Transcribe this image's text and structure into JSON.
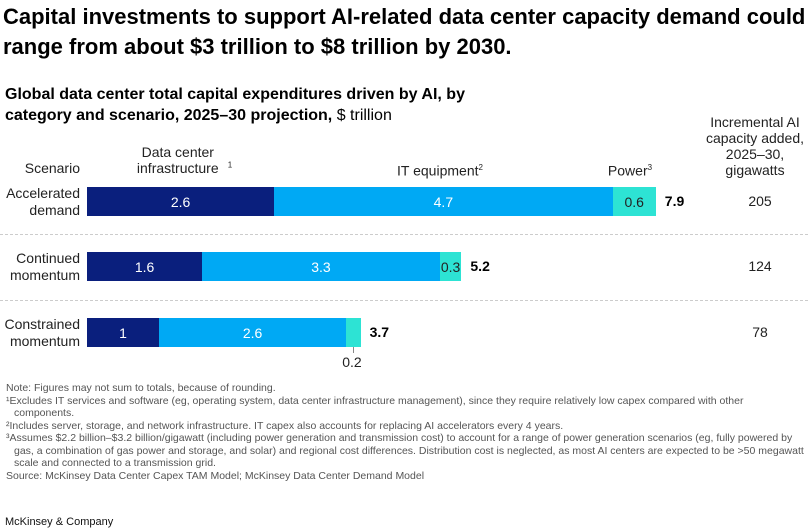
{
  "headline": "Capital investments to support AI-related data center capacity demand could range from about $3 trillion to $8 trillion by 2030.",
  "chart_data": {
    "type": "bar",
    "orientation": "horizontal",
    "stacked": true,
    "title": "Global data center total capital expenditures driven by AI, by category and scenario, 2025–30 projection,",
    "unit": "$ trillion",
    "scenario_header": "Scenario",
    "capacity_header": "Incremental AI capacity added, 2025–30, gigawatts",
    "categories": [
      "Accelerated demand",
      "Continued momentum",
      "Constrained momentum"
    ],
    "series": [
      {
        "name": "Data center infrastructure",
        "footnote": "1",
        "color": "#0a1f7d",
        "values": [
          2.6,
          1.6,
          1.0
        ]
      },
      {
        "name": "IT equipment",
        "footnote": "2",
        "color": "#00a9f4",
        "values": [
          4.7,
          3.3,
          2.6
        ]
      },
      {
        "name": "Power",
        "footnote": "3",
        "color": "#2de3d4",
        "values": [
          0.6,
          0.3,
          0.2
        ]
      }
    ],
    "totals": [
      "7.9",
      "5.2",
      "3.7"
    ],
    "capacity_gw": [
      "205",
      "124",
      "78"
    ]
  },
  "notes": [
    "Note: Figures may not sum to totals, because of rounding.",
    "¹Excludes IT services and software (eg, operating system, data center infrastructure management), since they require relatively low capex compared with other components.",
    "²Includes server, storage, and network infrastructure. IT capex also accounts for replacing AI accelerators every 4 years.",
    "³Assumes $2.2 billion–$3.2 billion/gigawatt (including power generation and transmission cost) to account for a range of power generation scenarios (eg, fully powered by gas, a combination of gas power and storage, and solar) and regional cost differences. Distribution cost is neglected, as most AI centers are expected to be >50 megawatt scale and connected to a transmission grid.",
    "Source: McKinsey Data Center Capex TAM Model; McKinsey Data Center Demand Model"
  ],
  "brand": "McKinsey & Company"
}
